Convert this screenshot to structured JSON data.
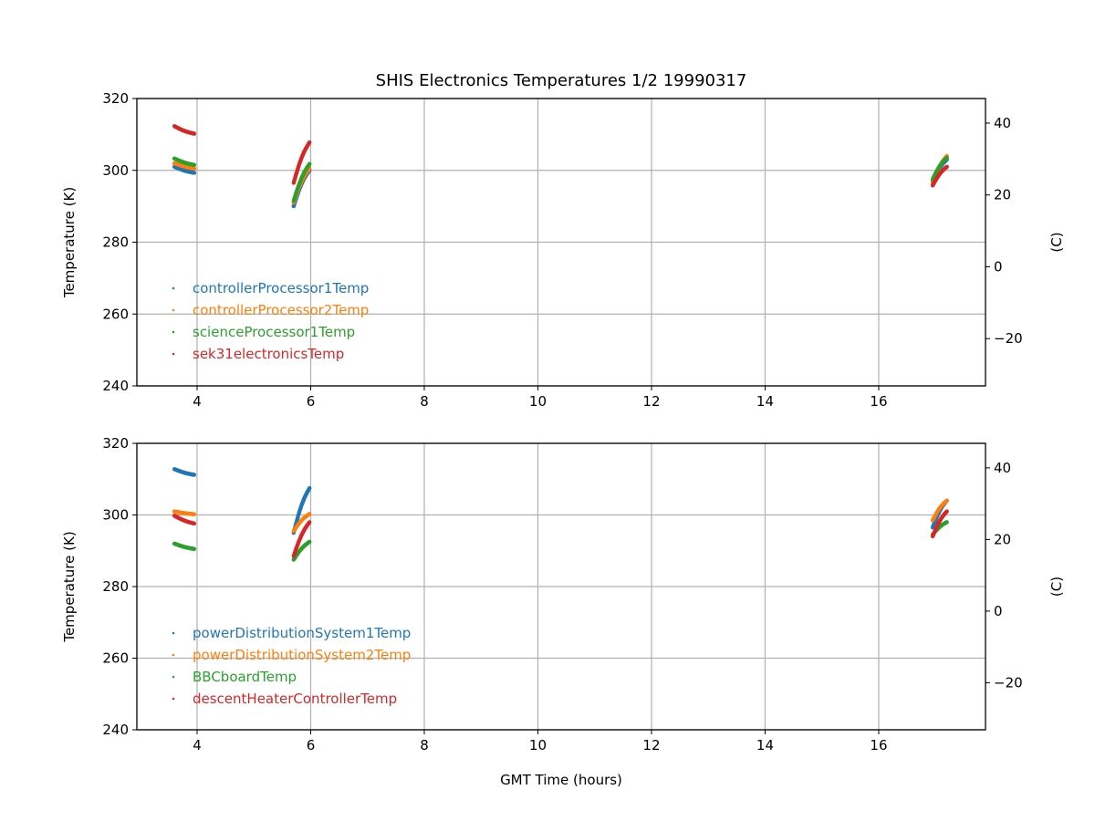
{
  "title": "SHIS Electronics Temperatures 1/2 19990317",
  "chart_data": [
    {
      "type": "scatter",
      "xlabel": "",
      "ylabel": "Temperature (K)",
      "y2label": "(C)",
      "xlim": [
        2.94,
        17.88
      ],
      "ylim": [
        240,
        320
      ],
      "xticks": [
        4,
        6,
        8,
        10,
        12,
        14,
        16
      ],
      "yticks": [
        240,
        260,
        280,
        300,
        320
      ],
      "y2ticks": [
        -20,
        0,
        20,
        40
      ],
      "grid": true,
      "legend_position": "lower-left",
      "series": [
        {
          "name": "controllerProcessor1Temp",
          "color": "#1f77b4",
          "segments": [
            [
              [
                3.6,
                301.0
              ],
              [
                3.95,
                299.3
              ]
            ],
            [
              [
                5.7,
                290.0
              ],
              [
                5.98,
                300.0
              ]
            ],
            [
              [
                16.95,
                297.0
              ],
              [
                17.2,
                303.0
              ]
            ]
          ]
        },
        {
          "name": "controllerProcessor2Temp",
          "color": "#ff7f0e",
          "segments": [
            [
              [
                3.6,
                302.0
              ],
              [
                3.95,
                300.5
              ]
            ],
            [
              [
                5.7,
                291.0
              ],
              [
                5.98,
                300.5
              ]
            ],
            [
              [
                16.95,
                296.5
              ],
              [
                17.2,
                304.0
              ]
            ]
          ]
        },
        {
          "name": "scienceProcessor1Temp",
          "color": "#2ca02c",
          "segments": [
            [
              [
                3.6,
                303.3
              ],
              [
                3.95,
                301.5
              ]
            ],
            [
              [
                5.7,
                291.5
              ],
              [
                5.98,
                301.8
              ]
            ],
            [
              [
                16.95,
                297.5
              ],
              [
                17.2,
                303.5
              ]
            ]
          ]
        },
        {
          "name": "sek31electronicsTemp",
          "color": "#d62728",
          "segments": [
            [
              [
                3.6,
                312.3
              ],
              [
                3.95,
                310.2
              ]
            ],
            [
              [
                5.7,
                296.5
              ],
              [
                5.98,
                307.8
              ]
            ],
            [
              [
                16.95,
                295.8
              ],
              [
                17.2,
                301.0
              ]
            ]
          ]
        }
      ]
    },
    {
      "type": "scatter",
      "xlabel": "GMT Time (hours)",
      "ylabel": "Temperature (K)",
      "y2label": "(C)",
      "xlim": [
        2.94,
        17.88
      ],
      "ylim": [
        240,
        320
      ],
      "xticks": [
        4,
        6,
        8,
        10,
        12,
        14,
        16
      ],
      "yticks": [
        240,
        260,
        280,
        300,
        320
      ],
      "y2ticks": [
        -20,
        0,
        20,
        40
      ],
      "grid": true,
      "legend_position": "lower-left",
      "series": [
        {
          "name": "powerDistributionSystem1Temp",
          "color": "#1f77b4",
          "segments": [
            [
              [
                3.6,
                312.8
              ],
              [
                3.95,
                311.2
              ]
            ],
            [
              [
                5.7,
                295.0
              ],
              [
                5.98,
                307.5
              ]
            ],
            [
              [
                16.95,
                296.5
              ],
              [
                17.2,
                304.0
              ]
            ]
          ]
        },
        {
          "name": "powerDistributionSystem2Temp",
          "color": "#ff7f0e",
          "segments": [
            [
              [
                3.6,
                301.0
              ],
              [
                3.95,
                300.2
              ]
            ],
            [
              [
                5.7,
                295.5
              ],
              [
                5.98,
                300.3
              ]
            ],
            [
              [
                16.95,
                298.5
              ],
              [
                17.2,
                304.0
              ]
            ]
          ]
        },
        {
          "name": "BBCboardTemp",
          "color": "#2ca02c",
          "segments": [
            [
              [
                3.6,
                292.0
              ],
              [
                3.95,
                290.5
              ]
            ],
            [
              [
                5.7,
                287.5
              ],
              [
                5.98,
                292.5
              ]
            ],
            [
              [
                16.95,
                294.5
              ],
              [
                17.2,
                298.0
              ]
            ]
          ]
        },
        {
          "name": "descentHeaterControllerTemp",
          "color": "#d62728",
          "segments": [
            [
              [
                3.6,
                299.8
              ],
              [
                3.95,
                297.6
              ]
            ],
            [
              [
                5.7,
                288.5
              ],
              [
                5.98,
                298.0
              ]
            ],
            [
              [
                16.95,
                294.0
              ],
              [
                17.2,
                301.0
              ]
            ]
          ]
        }
      ]
    }
  ]
}
